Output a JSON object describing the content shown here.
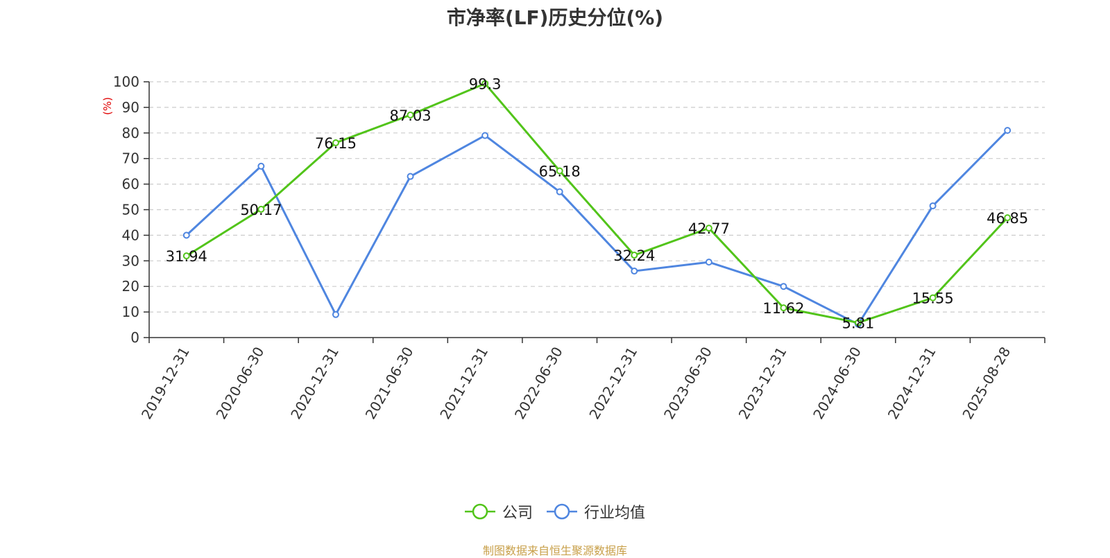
{
  "title": "市净率(LF)历史分位(%)",
  "source": "制图数据来自恒生聚源数据库",
  "colors": {
    "company": "#52c41a",
    "industry": "#4f86e0"
  },
  "chart_data": {
    "type": "line",
    "title": "市净率(LF)历史分位(%)",
    "ylabel": "(%)",
    "xlabel": "",
    "ylim": [
      0,
      100
    ],
    "yticks": [
      0,
      10,
      20,
      30,
      40,
      50,
      60,
      70,
      80,
      90,
      100
    ],
    "grid": true,
    "legend_position": "bottom",
    "categories": [
      "2019-12-31",
      "2020-06-30",
      "2020-12-31",
      "2021-06-30",
      "2021-12-31",
      "2022-06-30",
      "2022-12-31",
      "2023-06-30",
      "2023-12-31",
      "2024-06-30",
      "2024-12-31",
      "2025-08-28"
    ],
    "series": [
      {
        "name": "公司",
        "color": "#52c41a",
        "show_labels": true,
        "values": [
          31.94,
          50.17,
          76.15,
          87.03,
          99.3,
          65.18,
          32.24,
          42.77,
          11.62,
          5.81,
          15.55,
          46.85
        ]
      },
      {
        "name": "行业均值",
        "color": "#4f86e0",
        "show_labels": false,
        "values": [
          40,
          67,
          9,
          63,
          79,
          57,
          26,
          29.5,
          20,
          5.2,
          51.5,
          81
        ]
      }
    ]
  }
}
